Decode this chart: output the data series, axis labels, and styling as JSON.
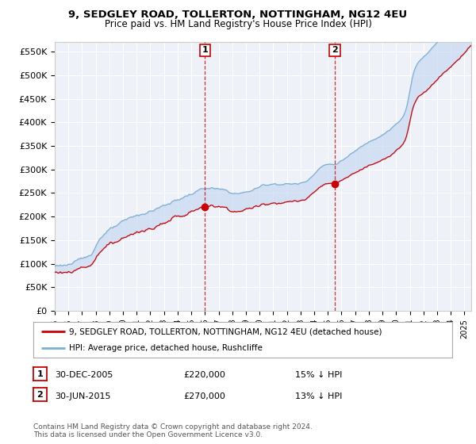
{
  "title": "9, SEDGLEY ROAD, TOLLERTON, NOTTINGHAM, NG12 4EU",
  "subtitle": "Price paid vs. HM Land Registry's House Price Index (HPI)",
  "ylabel_ticks": [
    "£0",
    "£50K",
    "£100K",
    "£150K",
    "£200K",
    "£250K",
    "£300K",
    "£350K",
    "£400K",
    "£450K",
    "£500K",
    "£550K"
  ],
  "ytick_values": [
    0,
    50000,
    100000,
    150000,
    200000,
    250000,
    300000,
    350000,
    400000,
    450000,
    500000,
    550000
  ],
  "ylim": [
    0,
    570000
  ],
  "xlim_start": 1995.0,
  "xlim_end": 2025.5,
  "hpi_color": "#7bafd4",
  "price_color": "#cc0000",
  "fill_color": "#c8d8f0",
  "sale1_x": 2005.99,
  "sale1_y": 220000,
  "sale2_x": 2015.5,
  "sale2_y": 270000,
  "legend_house": "9, SEDGLEY ROAD, TOLLERTON, NOTTINGHAM, NG12 4EU (detached house)",
  "legend_hpi": "HPI: Average price, detached house, Rushcliffe",
  "ann1_date": "30-DEC-2005",
  "ann1_price": "£220,000",
  "ann1_hpi": "15% ↓ HPI",
  "ann2_date": "30-JUN-2015",
  "ann2_price": "£270,000",
  "ann2_hpi": "13% ↓ HPI",
  "footer": "Contains HM Land Registry data © Crown copyright and database right 2024.\nThis data is licensed under the Open Government Licence v3.0.",
  "background_color": "#ffffff",
  "plot_bg_color": "#eef2f8"
}
